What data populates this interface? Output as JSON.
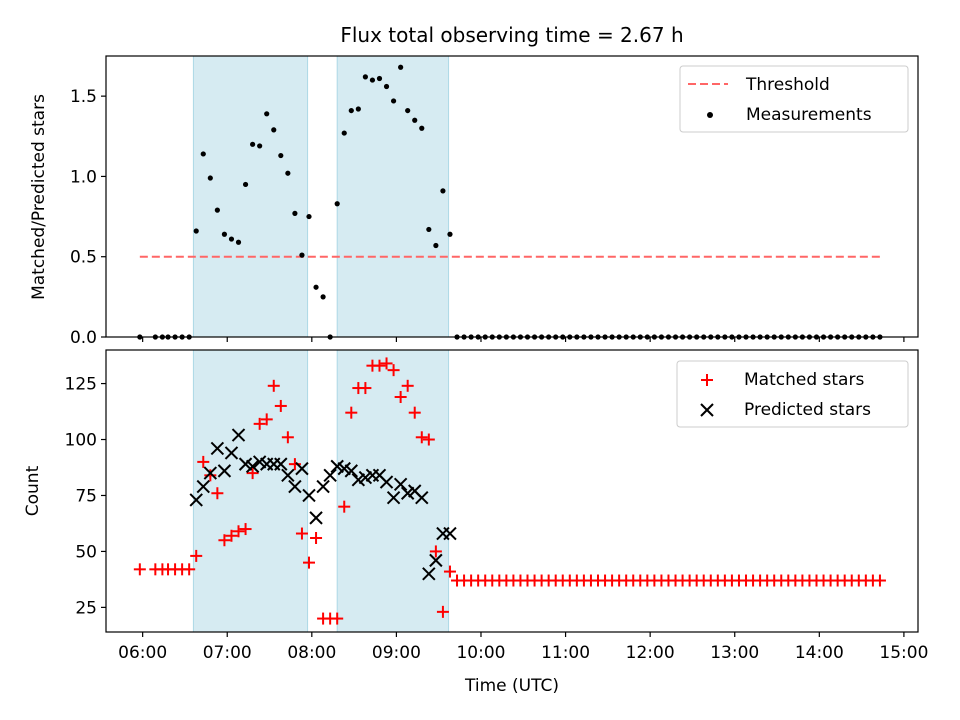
{
  "chart_data": [
    {
      "type": "scatter",
      "title": "Flux total observing time = 2.67 h",
      "xlabel": "",
      "ylabel": "Matched/Predicted stars",
      "xlim": [
        "05:34",
        "15:10"
      ],
      "ylim": [
        0,
        1.75
      ],
      "y_ticks": [
        0.0,
        0.5,
        1.0,
        1.5
      ],
      "y_tick_labels": [
        "0.0",
        "0.5",
        "1.0",
        "1.5"
      ],
      "grid": false,
      "legend_position": "top-right",
      "shaded_intervals": [
        [
          "06:36",
          "07:57"
        ],
        [
          "08:18",
          "09:37"
        ]
      ],
      "shade_color": "#add8e6",
      "series": [
        {
          "name": "Threshold",
          "kind": "dashed-line",
          "color": "#ff6666",
          "x": [
            "05:58",
            "14:43"
          ],
          "y": [
            0.5,
            0.5
          ]
        },
        {
          "name": "Measurements",
          "kind": "dots",
          "color": "#000000",
          "x": [
            "05:58",
            "06:09",
            "06:14",
            "06:18",
            "06:23",
            "06:28",
            "06:33",
            "06:38",
            "06:43",
            "06:48",
            "06:53",
            "06:58",
            "07:03",
            "07:08",
            "07:13",
            "07:18",
            "07:23",
            "07:28",
            "07:33",
            "07:38",
            "07:43",
            "07:48",
            "07:53",
            "07:58",
            "08:03",
            "08:08",
            "08:13",
            "08:18",
            "08:23",
            "08:28",
            "08:33",
            "08:38",
            "08:43",
            "08:48",
            "08:53",
            "08:58",
            "09:03",
            "09:08",
            "09:13",
            "09:18",
            "09:23",
            "09:28",
            "09:33",
            "09:38",
            "09:43",
            "09:48",
            "09:53",
            "09:58",
            "10:03",
            "10:08",
            "10:13",
            "10:18",
            "10:23",
            "10:28",
            "10:33",
            "10:38",
            "10:43",
            "10:48",
            "10:53",
            "10:58",
            "11:03",
            "11:08",
            "11:13",
            "11:18",
            "11:23",
            "11:28",
            "11:33",
            "11:38",
            "11:43",
            "11:48",
            "11:53",
            "11:58",
            "12:03",
            "12:08",
            "12:13",
            "12:18",
            "12:23",
            "12:28",
            "12:33",
            "12:38",
            "12:43",
            "12:48",
            "12:53",
            "12:58",
            "13:03",
            "13:08",
            "13:13",
            "13:18",
            "13:23",
            "13:28",
            "13:33",
            "13:38",
            "13:43",
            "13:48",
            "13:53",
            "13:58",
            "14:03",
            "14:08",
            "14:13",
            "14:18",
            "14:23",
            "14:28",
            "14:33",
            "14:38",
            "14:43"
          ],
          "y": [
            0,
            0,
            0,
            0,
            0,
            0,
            0,
            0.66,
            1.14,
            0.99,
            0.79,
            0.64,
            0.61,
            0.59,
            0.95,
            1.2,
            1.19,
            1.39,
            1.29,
            1.13,
            1.02,
            0.77,
            0.51,
            0.75,
            0.31,
            0.25,
            0,
            0.83,
            1.27,
            1.41,
            1.42,
            1.62,
            1.6,
            1.61,
            1.56,
            1.47,
            1.68,
            1.41,
            1.35,
            1.3,
            0.67,
            0.57,
            0.91,
            0.64,
            0,
            0,
            0,
            0,
            0,
            0,
            0,
            0,
            0,
            0,
            0,
            0,
            0,
            0,
            0,
            0,
            0,
            0,
            0,
            0,
            0,
            0,
            0,
            0,
            0,
            0,
            0,
            0,
            0,
            0,
            0,
            0,
            0,
            0,
            0,
            0,
            0,
            0,
            0,
            0,
            0,
            0,
            0,
            0,
            0,
            0,
            0,
            0,
            0,
            0,
            0,
            0,
            0,
            0,
            0,
            0,
            0,
            0,
            0,
            0,
            0
          ]
        }
      ]
    },
    {
      "type": "scatter",
      "title": "",
      "xlabel": "Time (UTC)",
      "ylabel": "Count",
      "xlim": [
        "05:34",
        "15:10"
      ],
      "ylim": [
        14,
        140
      ],
      "x_ticks": [
        "06:00",
        "07:00",
        "08:00",
        "09:00",
        "10:00",
        "11:00",
        "12:00",
        "13:00",
        "14:00",
        "15:00"
      ],
      "y_ticks": [
        25,
        50,
        75,
        100,
        125
      ],
      "y_tick_labels": [
        "25",
        "50",
        "75",
        "100",
        "125"
      ],
      "grid": false,
      "legend_position": "top-right",
      "shaded_intervals": [
        [
          "06:36",
          "07:57"
        ],
        [
          "08:18",
          "09:37"
        ]
      ],
      "shade_color": "#add8e6",
      "series": [
        {
          "name": "Matched stars",
          "marker": "+",
          "color": "#ff0000",
          "x": [
            "05:58",
            "06:09",
            "06:14",
            "06:18",
            "06:23",
            "06:28",
            "06:33",
            "06:38",
            "06:43",
            "06:48",
            "06:53",
            "06:58",
            "07:03",
            "07:08",
            "07:13",
            "07:18",
            "07:23",
            "07:28",
            "07:33",
            "07:38",
            "07:43",
            "07:48",
            "07:53",
            "07:58",
            "08:03",
            "08:08",
            "08:13",
            "08:18",
            "08:23",
            "08:28",
            "08:33",
            "08:38",
            "08:43",
            "08:48",
            "08:53",
            "08:58",
            "09:03",
            "09:08",
            "09:13",
            "09:18",
            "09:23",
            "09:28",
            "09:33",
            "09:38",
            "09:43",
            "09:48",
            "09:53",
            "09:58",
            "10:03",
            "10:08",
            "10:13",
            "10:18",
            "10:23",
            "10:28",
            "10:33",
            "10:38",
            "10:43",
            "10:48",
            "10:53",
            "10:58",
            "11:03",
            "11:08",
            "11:13",
            "11:18",
            "11:23",
            "11:28",
            "11:33",
            "11:38",
            "11:43",
            "11:48",
            "11:53",
            "11:58",
            "12:03",
            "12:08",
            "12:13",
            "12:18",
            "12:23",
            "12:28",
            "12:33",
            "12:38",
            "12:43",
            "12:48",
            "12:53",
            "12:58",
            "13:03",
            "13:08",
            "13:13",
            "13:18",
            "13:23",
            "13:28",
            "13:33",
            "13:38",
            "13:43",
            "13:48",
            "13:53",
            "13:58",
            "14:03",
            "14:08",
            "14:13",
            "14:18",
            "14:23",
            "14:28",
            "14:33",
            "14:38",
            "14:43"
          ],
          "y": [
            42,
            42,
            42,
            42,
            42,
            42,
            42,
            48,
            90,
            84,
            76,
            55,
            57,
            59,
            60,
            85,
            107,
            109,
            124,
            115,
            101,
            89,
            58,
            45,
            56,
            20,
            20,
            20,
            70,
            112,
            123,
            123,
            133,
            133,
            134,
            131,
            119,
            124,
            112,
            101,
            100,
            50,
            23,
            41,
            37,
            37,
            37,
            37,
            37,
            37,
            37,
            37,
            37,
            37,
            37,
            37,
            37,
            37,
            37,
            37,
            37,
            37,
            37,
            37,
            37,
            37,
            37,
            37,
            37,
            37,
            37,
            37,
            37,
            37,
            37,
            37,
            37,
            37,
            37,
            37,
            37,
            37,
            37,
            37,
            37,
            37,
            37,
            37,
            37,
            37,
            37,
            37,
            37,
            37,
            37,
            37,
            37,
            37,
            37,
            37,
            37,
            37,
            37,
            37,
            37
          ]
        },
        {
          "name": "Predicted stars",
          "marker": "x",
          "color": "#000000",
          "x": [
            "06:38",
            "06:43",
            "06:48",
            "06:53",
            "06:58",
            "07:03",
            "07:08",
            "07:13",
            "07:18",
            "07:23",
            "07:28",
            "07:33",
            "07:38",
            "07:43",
            "07:48",
            "07:53",
            "07:58",
            "08:03",
            "08:08",
            "08:13",
            "08:18",
            "08:23",
            "08:28",
            "08:33",
            "08:38",
            "08:43",
            "08:48",
            "08:53",
            "08:58",
            "09:03",
            "09:08",
            "09:13",
            "09:18",
            "09:23",
            "09:28",
            "09:33",
            "09:38"
          ],
          "y": [
            73,
            79,
            85,
            96,
            86,
            94,
            102,
            89,
            88,
            90,
            89,
            89,
            89,
            84,
            79,
            87,
            75,
            65,
            79,
            84,
            88,
            87,
            86,
            82,
            83,
            84,
            84,
            81,
            74,
            80,
            76,
            77,
            74,
            40,
            46,
            58,
            58
          ]
        }
      ]
    }
  ]
}
